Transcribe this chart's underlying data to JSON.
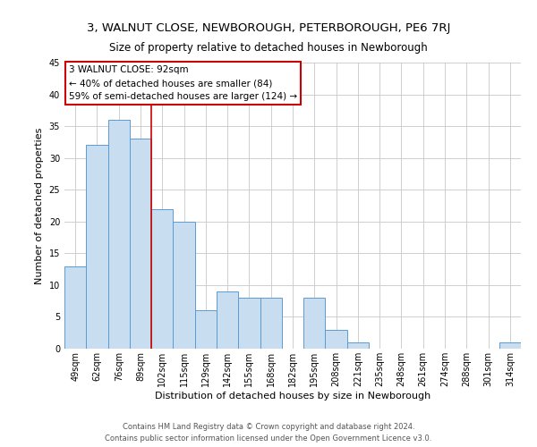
{
  "title": "3, WALNUT CLOSE, NEWBOROUGH, PETERBOROUGH, PE6 7RJ",
  "subtitle": "Size of property relative to detached houses in Newborough",
  "xlabel": "Distribution of detached houses by size in Newborough",
  "ylabel": "Number of detached properties",
  "bar_labels": [
    "49sqm",
    "62sqm",
    "76sqm",
    "89sqm",
    "102sqm",
    "115sqm",
    "129sqm",
    "142sqm",
    "155sqm",
    "168sqm",
    "182sqm",
    "195sqm",
    "208sqm",
    "221sqm",
    "235sqm",
    "248sqm",
    "261sqm",
    "274sqm",
    "288sqm",
    "301sqm",
    "314sqm"
  ],
  "bar_values": [
    13,
    32,
    36,
    33,
    22,
    20,
    6,
    9,
    8,
    8,
    0,
    8,
    3,
    1,
    0,
    0,
    0,
    0,
    0,
    0,
    1
  ],
  "bar_color": "#c9ddf0",
  "bar_edge_color": "#5b9bd5",
  "vline_x": 3.5,
  "vline_color": "#cc0000",
  "ylim": [
    0,
    45
  ],
  "yticks": [
    0,
    5,
    10,
    15,
    20,
    25,
    30,
    35,
    40,
    45
  ],
  "annotation_text": "3 WALNUT CLOSE: 92sqm\n← 40% of detached houses are smaller (84)\n59% of semi-detached houses are larger (124) →",
  "annotation_box_color": "#ffffff",
  "annotation_box_edge_color": "#cc0000",
  "footer_line1": "Contains HM Land Registry data © Crown copyright and database right 2024.",
  "footer_line2": "Contains public sector information licensed under the Open Government Licence v3.0.",
  "background_color": "#ffffff",
  "grid_color": "#c8c8c8",
  "title_fontsize": 9.5,
  "subtitle_fontsize": 8.5,
  "xlabel_fontsize": 8,
  "ylabel_fontsize": 8,
  "tick_fontsize": 7,
  "annotation_fontsize": 7.5,
  "footer_fontsize": 6
}
